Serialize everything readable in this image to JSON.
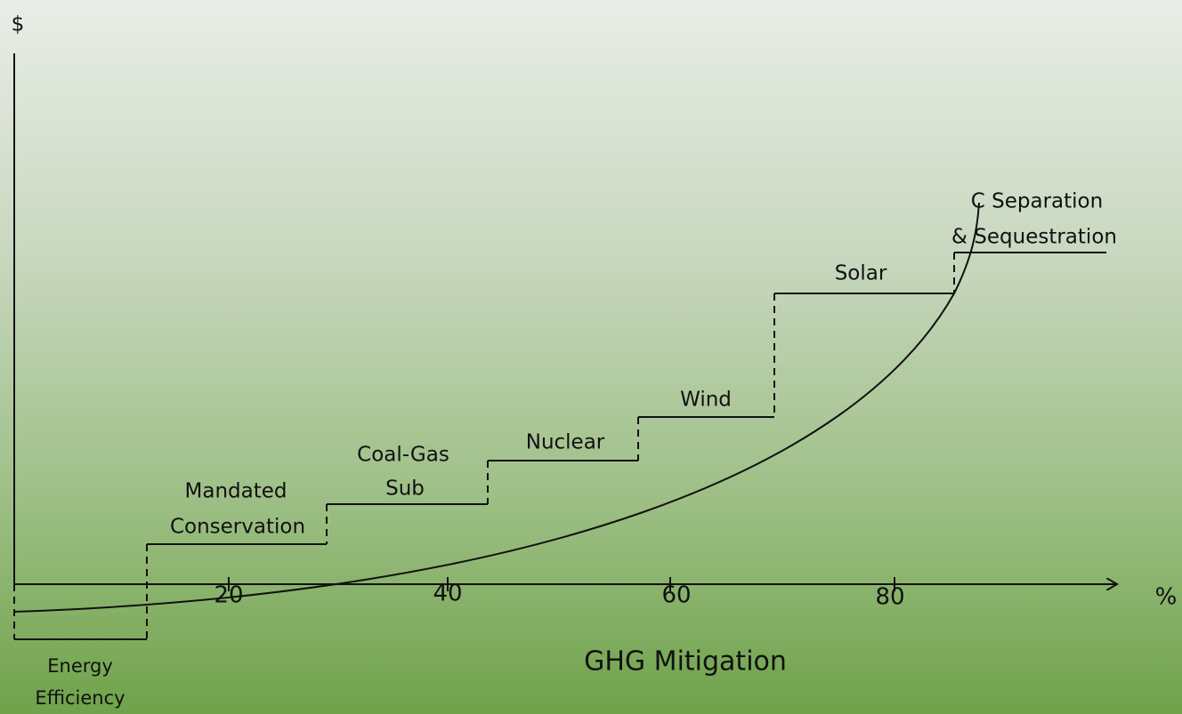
{
  "axes": {
    "y_label": "$",
    "x_label": "%",
    "title": "GHG Mitigation",
    "x_ticks": [
      "20",
      "40",
      "60",
      "80"
    ]
  },
  "steps": [
    {
      "label": [
        "Energy",
        "Efficiency"
      ]
    },
    {
      "label": [
        "Mandated",
        "Conservation"
      ]
    },
    {
      "label": [
        "Coal-Gas",
        "Sub"
      ]
    },
    {
      "label": [
        "Nuclear"
      ]
    },
    {
      "label": [
        "Wind"
      ]
    },
    {
      "label": [
        "Solar"
      ]
    },
    {
      "label": [
        "C Separation",
        "& Sequestration"
      ]
    }
  ]
}
